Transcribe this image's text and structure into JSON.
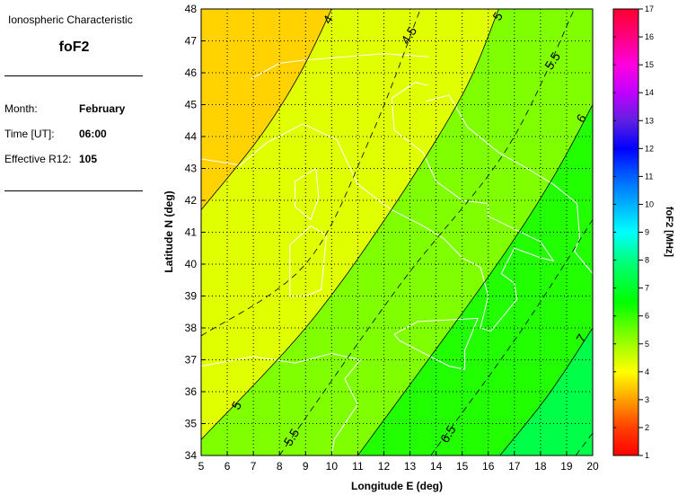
{
  "panel": {
    "heading": "Ionospheric Characteristic",
    "characteristic": "foF2",
    "month_label": "Month:",
    "month": "February",
    "time_label": "Time [UT]:",
    "time": "06:00",
    "r12_label": "Effective R12:",
    "r12": "105"
  },
  "chart_data": {
    "type": "contour-map",
    "xlabel": "Longitude E (deg)",
    "ylabel": "Latitude N (deg)",
    "xlim": [
      5,
      20
    ],
    "ylim": [
      34,
      48
    ],
    "xticks": [
      "5",
      "6",
      "7",
      "8",
      "9",
      "10",
      "11",
      "12",
      "13",
      "14",
      "15",
      "16",
      "17",
      "18",
      "19",
      "20"
    ],
    "yticks": [
      "34",
      "35",
      "36",
      "37",
      "38",
      "39",
      "40",
      "41",
      "42",
      "43",
      "44",
      "45",
      "46",
      "47",
      "48"
    ],
    "grid": true,
    "contours": [
      {
        "level": 4,
        "style": "solid",
        "points": [
          [
            5,
            41.7
          ],
          [
            7.26,
            44
          ],
          [
            8.8,
            46
          ],
          [
            10,
            48
          ]
        ],
        "labels": [
          [
            10.0,
            47.6
          ]
        ]
      },
      {
        "level": 4.5,
        "style": "dashed",
        "points": [
          [
            5,
            37.75
          ],
          [
            9,
            40
          ],
          [
            11.5,
            44
          ],
          [
            13.4,
            48
          ]
        ],
        "labels": [
          [
            13.1,
            47.1
          ]
        ]
      },
      {
        "level": 5,
        "style": "solid",
        "points": [
          [
            5,
            34.5
          ],
          [
            9,
            38
          ],
          [
            12.2,
            41.6
          ],
          [
            15,
            45.3
          ],
          [
            16.4,
            48
          ]
        ],
        "labels": [
          [
            16.5,
            47.7
          ],
          [
            6.5,
            35.5
          ]
        ]
      },
      {
        "level": 5.5,
        "style": "dashed",
        "points": [
          [
            8,
            34
          ],
          [
            12.66,
            39.4
          ],
          [
            16.7,
            43.6
          ],
          [
            19.3,
            48
          ]
        ],
        "labels": [
          [
            18.6,
            46.3
          ],
          [
            8.6,
            34.5
          ]
        ]
      },
      {
        "level": 6,
        "style": "solid",
        "points": [
          [
            11,
            34
          ],
          [
            16,
            39.6
          ],
          [
            18.4,
            42.6
          ],
          [
            20,
            45
          ]
        ],
        "labels": [
          [
            19.7,
            44.5
          ]
        ]
      },
      {
        "level": 6.5,
        "style": "dashed",
        "points": [
          [
            13.8,
            34
          ],
          [
            17.25,
            37.9
          ],
          [
            20,
            41.4
          ]
        ],
        "labels": [
          [
            14.6,
            34.6
          ]
        ]
      },
      {
        "level": 7,
        "style": "solid",
        "points": [
          [
            16.45,
            34
          ],
          [
            18.3,
            35.9
          ],
          [
            20,
            38
          ]
        ],
        "labels": [
          [
            19.7,
            37.6
          ]
        ]
      },
      {
        "level": 7.5,
        "style": "dashed",
        "points": [
          [
            19.35,
            34
          ],
          [
            20,
            34.7
          ]
        ],
        "labels": []
      }
    ],
    "band_colors": {
      "below_4": "#ffd200",
      "4_5": "#e0ff00",
      "5_6": "#80ff00",
      "6_7": "#22ff00",
      "above_7": "#00ff48"
    },
    "coastlines": [
      [
        [
          8.9,
          44.4
        ],
        [
          10.2,
          43.9
        ],
        [
          11,
          42.5
        ],
        [
          12.3,
          41.7
        ],
        [
          13.5,
          41.2
        ],
        [
          14.3,
          40.8
        ],
        [
          15,
          40.2
        ],
        [
          15.7,
          39.9
        ],
        [
          16,
          39
        ],
        [
          15.7,
          38
        ],
        [
          16.1,
          37.9
        ],
        [
          16.6,
          38.4
        ],
        [
          17.1,
          38.9
        ],
        [
          17,
          39.4
        ],
        [
          16.5,
          39.7
        ],
        [
          17,
          40.5
        ],
        [
          18,
          40.2
        ],
        [
          18.5,
          40.1
        ],
        [
          18,
          40.7
        ],
        [
          17,
          41.1
        ],
        [
          16,
          41.5
        ],
        [
          16,
          41.9
        ],
        [
          15,
          42
        ],
        [
          14,
          42.6
        ],
        [
          13.5,
          43.5
        ],
        [
          12.4,
          44.2
        ],
        [
          12.3,
          45.2
        ],
        [
          13.2,
          45.7
        ],
        [
          13.7,
          45.6
        ]
      ],
      [
        [
          13.6,
          45.1
        ],
        [
          14.5,
          45.3
        ],
        [
          15.2,
          44.3
        ],
        [
          16.4,
          43.5
        ],
        [
          17.5,
          43
        ],
        [
          18.5,
          42.5
        ],
        [
          19.4,
          41.9
        ],
        [
          19.5,
          40.8
        ],
        [
          19.3,
          40.4
        ],
        [
          20,
          39.7
        ]
      ],
      [
        [
          12.4,
          37.8
        ],
        [
          13.3,
          38.2
        ],
        [
          15.6,
          38.3
        ],
        [
          15.1,
          37.3
        ],
        [
          15.1,
          36.7
        ],
        [
          14.5,
          36.8
        ],
        [
          12.6,
          37.6
        ],
        [
          12.4,
          37.8
        ]
      ],
      [
        [
          9.4,
          43
        ],
        [
          9.5,
          42.1
        ],
        [
          9.2,
          41.4
        ],
        [
          8.6,
          41.8
        ],
        [
          8.6,
          42.6
        ],
        [
          9.4,
          43
        ]
      ],
      [
        [
          9.2,
          41.2
        ],
        [
          9.8,
          40.9
        ],
        [
          9.6,
          39.2
        ],
        [
          9,
          39
        ],
        [
          8.4,
          39
        ],
        [
          8.4,
          40.6
        ],
        [
          9.2,
          41.2
        ]
      ],
      [
        [
          5,
          36.8
        ],
        [
          7,
          37.1
        ],
        [
          8.6,
          36.9
        ],
        [
          10,
          37.2
        ],
        [
          11.1,
          37
        ],
        [
          10.5,
          36.4
        ],
        [
          11,
          35.6
        ],
        [
          10.1,
          34.5
        ],
        [
          10,
          34
        ]
      ],
      [
        [
          5,
          43.3
        ],
        [
          6.5,
          43.1
        ],
        [
          7.5,
          43.8
        ],
        [
          8.9,
          44.4
        ]
      ],
      [
        [
          6.9,
          45.8
        ],
        [
          8,
          46.3
        ],
        [
          9,
          46.4
        ],
        [
          10.5,
          46.5
        ],
        [
          12,
          46.6
        ],
        [
          13.7,
          46.5
        ]
      ]
    ],
    "colorbar": {
      "label": "foF2 [MHz]",
      "min": 1,
      "max": 17,
      "ticks": [
        "1",
        "2",
        "3",
        "4",
        "5",
        "6",
        "7",
        "8",
        "9",
        "10",
        "11",
        "12",
        "13",
        "14",
        "15",
        "16",
        "17"
      ],
      "stops": [
        [
          1,
          "#ff0000"
        ],
        [
          2,
          "#ff4000"
        ],
        [
          3,
          "#ffa000"
        ],
        [
          4,
          "#ffff00"
        ],
        [
          5,
          "#a0ff00"
        ],
        [
          6.5,
          "#00ff00"
        ],
        [
          8,
          "#00ff80"
        ],
        [
          9,
          "#00ffff"
        ],
        [
          10,
          "#00b0ff"
        ],
        [
          11,
          "#0060ff"
        ],
        [
          12,
          "#0000ff"
        ],
        [
          13,
          "#6020e0"
        ],
        [
          14,
          "#c000ff"
        ],
        [
          15,
          "#ff00e0"
        ],
        [
          16,
          "#ff0080"
        ],
        [
          17,
          "#ff0030"
        ]
      ]
    }
  }
}
